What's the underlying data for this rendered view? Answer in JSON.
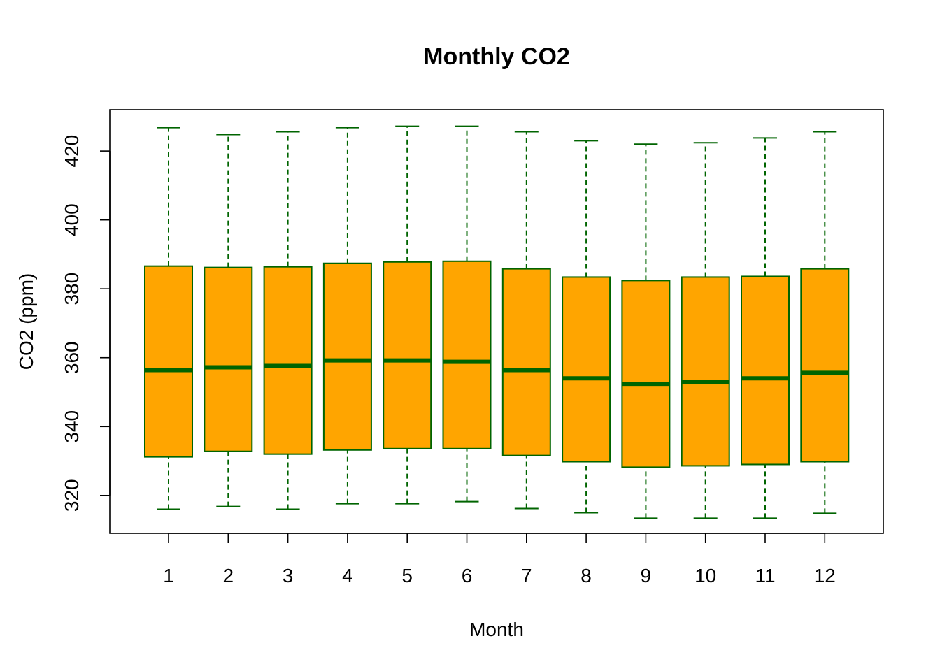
{
  "chart_data": {
    "type": "boxplot",
    "title": "Monthly CO2",
    "xlabel": "Month",
    "ylabel": "CO2 (ppm)",
    "ylim": [
      309,
      432
    ],
    "yticks": [
      320,
      340,
      360,
      380,
      400,
      420
    ],
    "grid": false,
    "colors": {
      "box_fill": "#FFA500",
      "box_line": "#006400"
    },
    "categories": [
      "1",
      "2",
      "3",
      "4",
      "5",
      "6",
      "7",
      "8",
      "9",
      "10",
      "11",
      "12"
    ],
    "boxes": [
      {
        "min": 316.0,
        "q1": 331.2,
        "median": 356.4,
        "q3": 386.6,
        "max": 426.8
      },
      {
        "min": 316.8,
        "q1": 332.8,
        "median": 357.2,
        "q3": 386.2,
        "max": 424.8
      },
      {
        "min": 316.0,
        "q1": 332.0,
        "median": 357.6,
        "q3": 386.4,
        "max": 425.6
      },
      {
        "min": 317.6,
        "q1": 333.2,
        "median": 359.2,
        "q3": 387.4,
        "max": 426.8
      },
      {
        "min": 317.6,
        "q1": 333.6,
        "median": 359.2,
        "q3": 387.8,
        "max": 427.2
      },
      {
        "min": 318.2,
        "q1": 333.6,
        "median": 358.8,
        "q3": 388.0,
        "max": 427.2
      },
      {
        "min": 316.2,
        "q1": 331.6,
        "median": 356.4,
        "q3": 385.8,
        "max": 425.6
      },
      {
        "min": 315.0,
        "q1": 329.8,
        "median": 354.0,
        "q3": 383.4,
        "max": 423.0
      },
      {
        "min": 313.4,
        "q1": 328.2,
        "median": 352.4,
        "q3": 382.4,
        "max": 422.0
      },
      {
        "min": 313.4,
        "q1": 328.6,
        "median": 353.0,
        "q3": 383.4,
        "max": 422.4
      },
      {
        "min": 313.4,
        "q1": 329.0,
        "median": 354.0,
        "q3": 383.6,
        "max": 423.8
      },
      {
        "min": 314.8,
        "q1": 329.8,
        "median": 355.6,
        "q3": 385.8,
        "max": 425.6
      }
    ]
  }
}
